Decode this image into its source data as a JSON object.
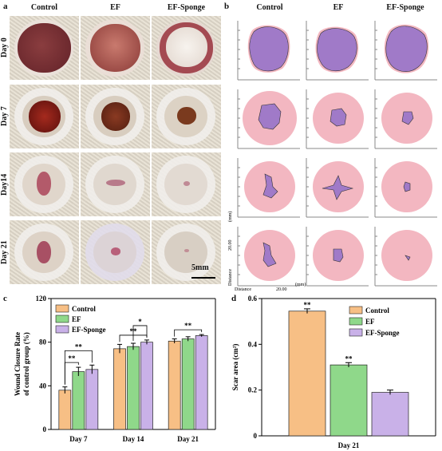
{
  "panel_a": {
    "letter": "a",
    "columns": [
      "Control",
      "EF",
      "EF-Sponge"
    ],
    "rows": [
      "Day 0",
      "Day 7",
      "Day14",
      "Day 21"
    ],
    "scale_bar": "5mm"
  },
  "panel_b": {
    "letter": "b",
    "columns": [
      "Control",
      "EF",
      "EF-Sponge"
    ],
    "axis_y_unit": "(mm)",
    "axis_y_tick": "20.00",
    "axis_y_label": "Distance",
    "axis_x_label": "Distance",
    "axis_x_tick": "20.00",
    "axis_x_unit": "(mm)"
  },
  "chart_data": [
    {
      "type": "bar",
      "panel": "c",
      "ylabel": "Wound Closure Rate of control group (%)",
      "ylim": [
        0,
        120
      ],
      "yticks": [
        0,
        40,
        80,
        120
      ],
      "categories": [
        "Day 7",
        "Day 14",
        "Day 21"
      ],
      "series": [
        {
          "name": "Control",
          "color": "#f7bf85",
          "values": [
            36,
            74,
            81
          ],
          "errors": [
            3,
            4,
            2
          ]
        },
        {
          "name": "EF",
          "color": "#8fd88a",
          "values": [
            53,
            76,
            83
          ],
          "errors": [
            4,
            3,
            2
          ]
        },
        {
          "name": "EF-Sponge",
          "color": "#c9b1e8",
          "values": [
            55,
            80,
            86
          ],
          "errors": [
            4,
            2,
            1
          ]
        }
      ],
      "significance": [
        {
          "category": "Day 7",
          "pair": [
            "Control",
            "EF"
          ],
          "mark": "**"
        },
        {
          "category": "Day 7",
          "pair": [
            "Control",
            "EF-Sponge"
          ],
          "mark": "**"
        },
        {
          "category": "Day 14",
          "pair": [
            "Control",
            "EF-Sponge"
          ],
          "mark": "**"
        },
        {
          "category": "Day 14",
          "pair": [
            "EF",
            "EF-Sponge"
          ],
          "mark": "*"
        },
        {
          "category": "Day 21",
          "pair": [
            "Control",
            "EF-Sponge"
          ],
          "mark": "**"
        }
      ],
      "legend": "top-left"
    },
    {
      "type": "bar",
      "panel": "d",
      "ylabel": "Scar area (cm²)",
      "ylim": [
        0,
        0.6
      ],
      "yticks": [
        0,
        0.2,
        0.4,
        0.6
      ],
      "categories": [
        "Day 21"
      ],
      "series": [
        {
          "name": "Control",
          "color": "#f7bf85",
          "values": [
            0.545
          ],
          "errors": [
            0.01
          ],
          "mark": "**"
        },
        {
          "name": "EF",
          "color": "#8fd88a",
          "values": [
            0.31
          ],
          "errors": [
            0.01
          ],
          "mark": "**"
        },
        {
          "name": "EF-Sponge",
          "color": "#c9b1e8",
          "values": [
            0.19
          ],
          "errors": [
            0.01
          ]
        }
      ],
      "legend": "top-right"
    }
  ]
}
